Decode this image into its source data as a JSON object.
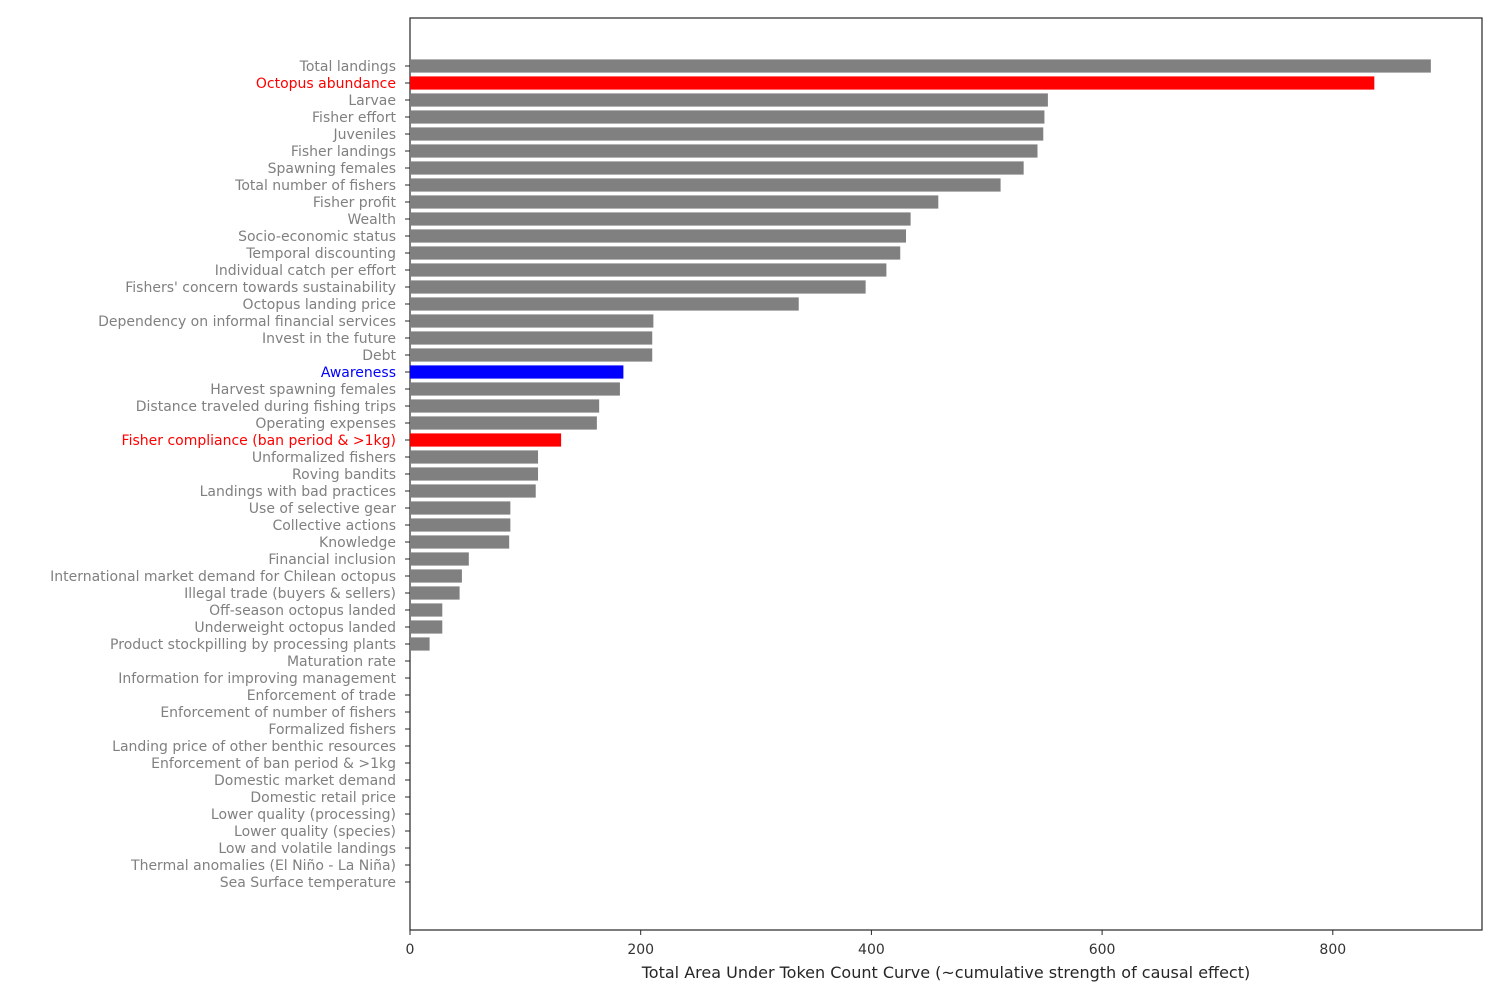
{
  "chart_data": {
    "type": "bar",
    "orientation": "horizontal",
    "title": "",
    "xlabel": "Total Area Under Token Count Curve (~cumulative strength of causal effect)",
    "ylabel": "",
    "xlim": [
      0,
      930
    ],
    "xticks": [
      0,
      200,
      400,
      600,
      800
    ],
    "grid": false,
    "legend": "none",
    "colors": {
      "default": "#808080",
      "highlight_red": "#ff0000",
      "highlight_blue": "#0000ff",
      "label_default": "#808080"
    },
    "categories": [
      "Total landings",
      "Octopus abundance",
      "Larvae",
      "Fisher effort",
      "Juveniles",
      "Fisher landings",
      "Spawning females",
      "Total number of fishers",
      "Fisher profit",
      "Wealth",
      "Socio-economic status",
      "Temporal discounting",
      "Individual catch per effort",
      "Fishers' concern towards sustainability",
      "Octopus landing price",
      "Dependency on informal financial services",
      "Invest in the future",
      "Debt",
      "Awareness",
      "Harvest spawning females",
      "Distance traveled during fishing trips",
      "Operating expenses",
      "Fisher compliance (ban period & >1kg)",
      "Unformalized fishers",
      "Roving bandits",
      "Landings with bad practices",
      "Use of selective gear",
      "Collective actions",
      "Knowledge",
      "Financial inclusion",
      "International market demand for Chilean octopus",
      "Illegal trade (buyers & sellers)",
      "Off-season octopus landed",
      "Underweight octopus landed",
      "Product stockpilling by processing plants",
      "Maturation rate",
      "Information for improving management",
      "Enforcement of trade",
      "Enforcement of number of fishers",
      "Formalized fishers",
      "Landing price of other benthic resources",
      "Enforcement of ban period & >1kg",
      "Domestic market demand",
      "Domestic retail price",
      "Lower quality (processing)",
      "Lower quality (species)",
      "Low and volatile landings",
      "Thermal anomalies (El Niño - La Niña)",
      "Sea Surface temperature"
    ],
    "values": [
      885,
      836,
      553,
      550,
      549,
      544,
      532,
      512,
      458,
      434,
      430,
      425,
      413,
      395,
      337,
      211,
      210,
      210,
      185,
      182,
      164,
      162,
      131,
      111,
      111,
      109,
      87,
      87,
      86,
      51,
      45,
      43,
      28,
      28,
      17,
      0,
      0,
      0,
      0,
      0,
      0,
      0,
      0,
      0,
      0,
      0,
      0,
      0,
      0
    ],
    "highlights": {
      "Octopus abundance": "highlight_red",
      "Fisher compliance (ban period & >1kg)": "highlight_red",
      "Awareness": "highlight_blue"
    }
  }
}
